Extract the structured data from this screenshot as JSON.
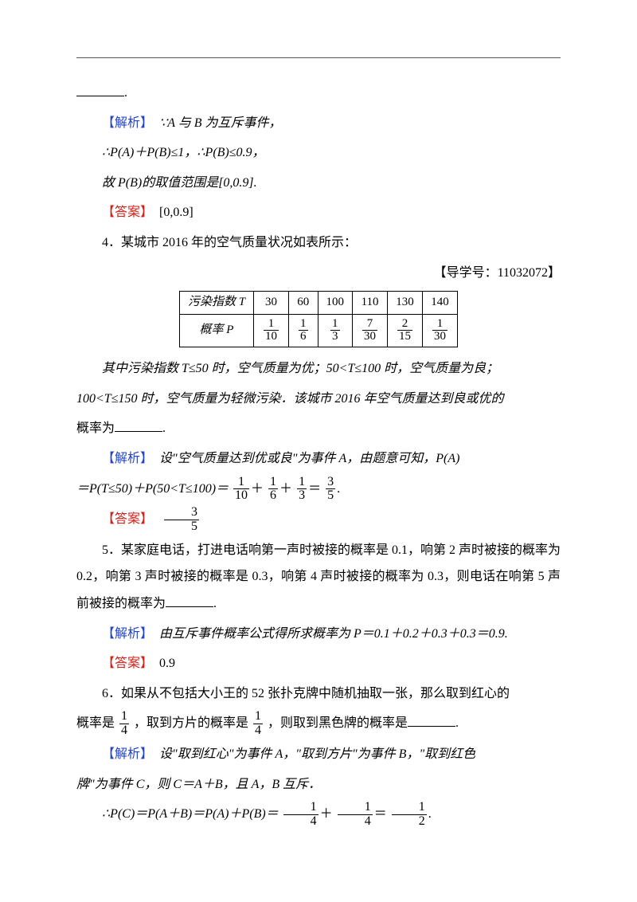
{
  "labels": {
    "analysis": "【解析】",
    "answer": "【答案】"
  },
  "q3": {
    "a1": "∵A 与 B 为互斥事件，",
    "a2": "∴P(A)＋P(B)≤1，∴P(B)≤0.9，",
    "a3": "故 P(B)的取值范围是[0,0.9].",
    "ans": "[0,0.9]"
  },
  "q4": {
    "title": "4．某城市 2016 年的空气质量状况如表所示：",
    "ref": "【导学号：11032072】",
    "table": {
      "rowHeader1": "污染指数 T",
      "rowHeader2": "概率 P",
      "cols": [
        "30",
        "60",
        "100",
        "110",
        "130",
        "140"
      ],
      "probs": [
        {
          "n": "1",
          "d": "10"
        },
        {
          "n": "1",
          "d": "6"
        },
        {
          "n": "1",
          "d": "3"
        },
        {
          "n": "7",
          "d": "30"
        },
        {
          "n": "2",
          "d": "15"
        },
        {
          "n": "1",
          "d": "30"
        }
      ]
    },
    "body1": "其中污染指数 T≤50 时，空气质量为优；50<T≤100 时，空气质量为良；",
    "body2": "100<T≤150 时，空气质量为轻微污染．该城市 2016 年空气质量达到良或优的",
    "body3pre": "概率为",
    "a1": "设\"空气质量达到优或良\"为事件 A，由题意可知，P(A)",
    "a2pre": "＝P(T≤50)＋P(50<T≤100)＝",
    "sum": [
      {
        "n": "1",
        "d": "10"
      },
      {
        "n": "1",
        "d": "6"
      },
      {
        "n": "1",
        "d": "3"
      },
      {
        "n": "3",
        "d": "5"
      }
    ],
    "ans": {
      "n": "3",
      "d": "5"
    }
  },
  "q5": {
    "body": "5．某家庭电话，打进电话响第一声时被接的概率是 0.1，响第 2 声时被接的概率为 0.2，响第 3 声时被接的概率是 0.3，响第 4 声时被接的概率为 0.3，则电话在响第 5 声前被接的概率为",
    "a1": "由互斥事件概率公式得所求概率为 P＝0.1＋0.2＋0.3＋0.3＝0.9.",
    "ans": "0.9"
  },
  "q6": {
    "l1": "6．如果从不包括大小王的 52 张扑克牌中随机抽取一张，那么取到红心的",
    "l2a": "概率是",
    "l2b": "，取到方片的概率是",
    "l2c": "，则取到黑色牌的概率是",
    "f": {
      "n": "1",
      "d": "4"
    },
    "a1": "设\"取到红心\"为事件 A，\"取到方片\"为事件 B，\"取到红色",
    "a2": "牌\"为事件 C，则 C＝A＋B，且 A，B 互斥．",
    "a3pre": "∴P(C)＝P(A＋B)＝P(A)＋P(B)＝",
    "a3f1": {
      "n": "1",
      "d": "4"
    },
    "a3f2": {
      "n": "1",
      "d": "4"
    },
    "a3f3": {
      "n": "1",
      "d": "2"
    }
  }
}
